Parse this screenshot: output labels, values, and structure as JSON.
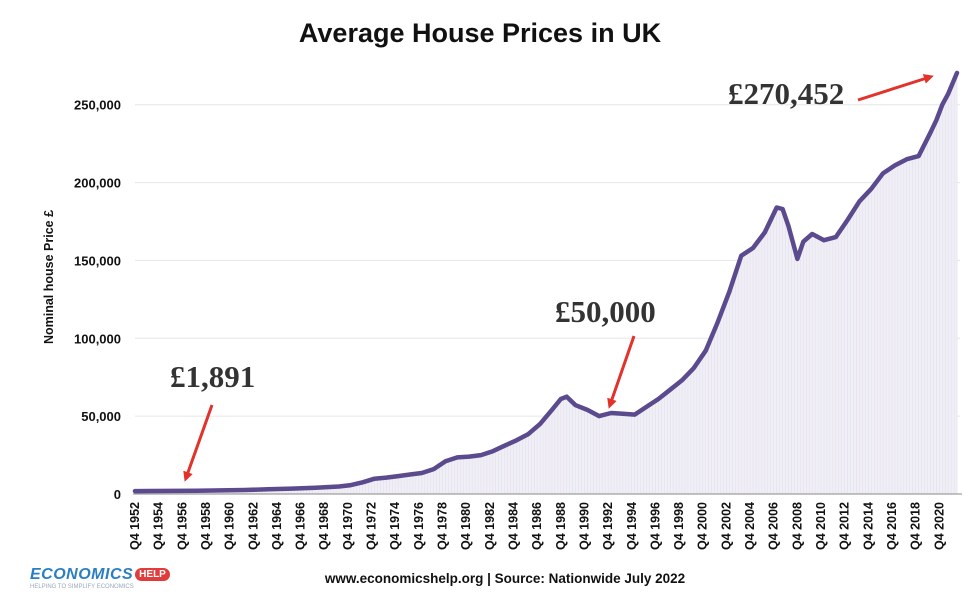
{
  "chart_data": {
    "type": "area",
    "title": "Average House Prices in UK",
    "ylabel": "Nominal house Price £",
    "xlabel": "",
    "ylim": [
      0,
      280000
    ],
    "yticks": [
      0,
      50000,
      100000,
      150000,
      200000,
      250000
    ],
    "ytick_labels": [
      "0",
      "50,000",
      "100,000",
      "150,000",
      "200,000",
      "250,000"
    ],
    "xlim": [
      1952.75,
      2022.5
    ],
    "xtick_years": [
      1952,
      1954,
      1956,
      1958,
      1960,
      1962,
      1964,
      1966,
      1968,
      1970,
      1972,
      1974,
      1976,
      1978,
      1980,
      1982,
      1984,
      1986,
      1988,
      1990,
      1992,
      1994,
      1996,
      1998,
      2000,
      2002,
      2004,
      2006,
      2008,
      2010,
      2012,
      2014,
      2016,
      2018,
      2020
    ],
    "xtick_labels": [
      "Q4 1952",
      "Q4 1954",
      "Q4 1956",
      "Q4 1958",
      "Q4 1960",
      "Q4 1962",
      "Q4 1964",
      "Q4 1966",
      "Q4 1968",
      "Q4 1970",
      "Q4 1972",
      "Q4 1974",
      "Q4 1976",
      "Q4 1978",
      "Q4 1980",
      "Q4 1982",
      "Q4 1984",
      "Q4 1986",
      "Q4 1988",
      "Q4 1990",
      "Q4 1992",
      "Q4 1994",
      "Q4 1996",
      "Q4 1998",
      "Q4 2000",
      "Q4 2002",
      "Q4 2004",
      "Q4 2006",
      "Q4 2008",
      "Q4 2010",
      "Q4 2012",
      "Q4 2014",
      "Q4 2016",
      "Q4 2018",
      "Q4 2020"
    ],
    "grid": true,
    "series": [
      {
        "name": "",
        "color": "#5b4a8e",
        "x": [
          1952.75,
          1954,
          1956,
          1958,
          1960,
          1962,
          1964,
          1966,
          1968,
          1970,
          1971,
          1972,
          1973,
          1974,
          1975,
          1976,
          1977,
          1978,
          1979,
          1980,
          1981,
          1982,
          1983,
          1984,
          1985,
          1986,
          1987,
          1988,
          1988.75,
          1989.25,
          1990,
          1991,
          1992,
          1993,
          1994,
          1995,
          1996,
          1997,
          1998,
          1999,
          2000,
          2001,
          2002,
          2003,
          2004,
          2005,
          2006,
          2007,
          2007.5,
          2008,
          2008.75,
          2009.25,
          2010,
          2011,
          2012,
          2013,
          2014,
          2015,
          2016,
          2017,
          2018,
          2019,
          2020,
          2020.5,
          2021,
          2021.5,
          2022.25
        ],
        "y": [
          1891,
          1950,
          2000,
          2100,
          2300,
          2600,
          3000,
          3500,
          4000,
          4800,
          5700,
          7500,
          9800,
          10500,
          11500,
          12500,
          13500,
          16000,
          21000,
          23500,
          24000,
          25000,
          27500,
          31000,
          34500,
          38500,
          45000,
          54000,
          61000,
          62500,
          57000,
          54000,
          50000,
          52000,
          51500,
          51000,
          56000,
          61000,
          67000,
          73000,
          81000,
          92000,
          110000,
          130000,
          153000,
          158000,
          168000,
          184000,
          183000,
          172000,
          151000,
          162000,
          167000,
          163000,
          165000,
          176000,
          188000,
          196000,
          206000,
          211000,
          215000,
          217000,
          232000,
          240000,
          250000,
          257000,
          270452
        ]
      }
    ],
    "annotations": [
      {
        "text": "£1,891",
        "x": 1956.5,
        "y": 1891
      },
      {
        "text": "£50,000",
        "x": 1992.5,
        "y": 50000
      },
      {
        "text": "£270,452",
        "x": 2022.25,
        "y": 270452
      }
    ]
  },
  "source_text": "www.economicshelp.org | Source: Nationwide July 2022",
  "logo": {
    "brand": "ECONOMICS",
    "badge": "HELP",
    "tagline": "HELPING TO SIMPLIFY ECONOMICS"
  }
}
